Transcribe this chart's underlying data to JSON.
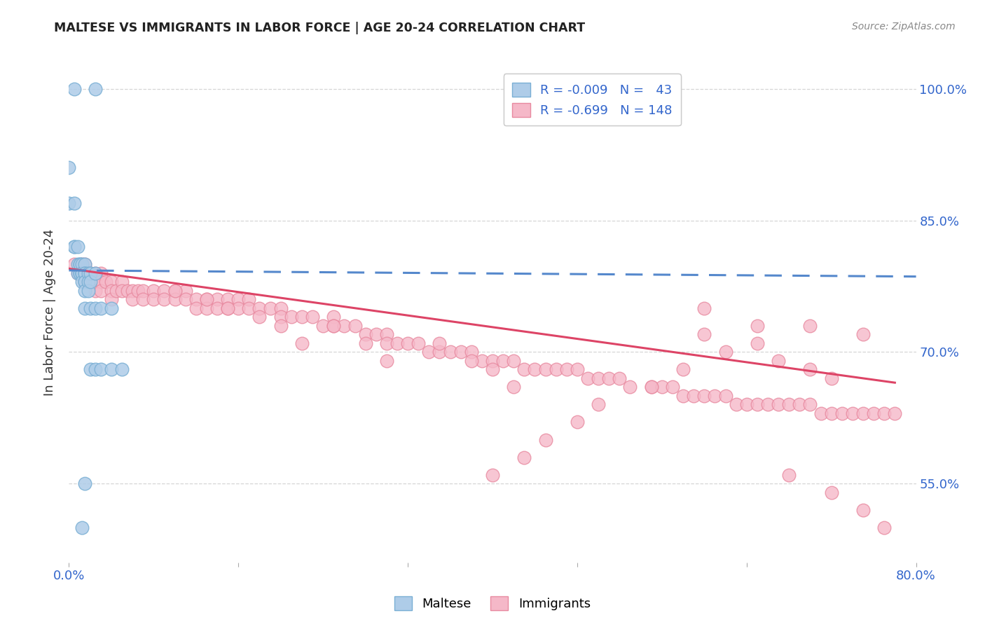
{
  "title": "MALTESE VS IMMIGRANTS IN LABOR FORCE | AGE 20-24 CORRELATION CHART",
  "source": "Source: ZipAtlas.com",
  "ylabel": "In Labor Force | Age 20-24",
  "xlim": [
    0.0,
    0.8
  ],
  "ylim": [
    0.46,
    1.03
  ],
  "ytick_values": [
    0.55,
    0.7,
    0.85,
    1.0
  ],
  "ytick_labels": [
    "55.0%",
    "70.0%",
    "85.0%",
    "100.0%"
  ],
  "xtick_values": [
    0.0,
    0.16,
    0.32,
    0.48,
    0.64,
    0.8
  ],
  "xtick_labels": [
    "0.0%",
    "",
    "",
    "",
    "",
    "80.0%"
  ],
  "maltese_color": "#aecce8",
  "immigrants_color": "#f5b8c8",
  "maltese_edge": "#7aafd4",
  "immigrants_edge": "#e88aa0",
  "trendline_maltese_color": "#5588cc",
  "trendline_immigrants_color": "#dd4466",
  "grid_color": "#cccccc",
  "background_color": "#ffffff",
  "maltese_x": [
    0.005,
    0.025,
    0.0,
    0.0,
    0.005,
    0.005,
    0.005,
    0.008,
    0.008,
    0.008,
    0.01,
    0.01,
    0.01,
    0.01,
    0.012,
    0.012,
    0.012,
    0.012,
    0.012,
    0.015,
    0.015,
    0.015,
    0.015,
    0.015,
    0.015,
    0.015,
    0.018,
    0.018,
    0.018,
    0.02,
    0.02,
    0.02,
    0.02,
    0.025,
    0.025,
    0.025,
    0.03,
    0.03,
    0.04,
    0.04,
    0.05,
    0.015,
    0.012
  ],
  "maltese_y": [
    1.0,
    1.0,
    0.91,
    0.87,
    0.87,
    0.82,
    0.82,
    0.82,
    0.8,
    0.79,
    0.8,
    0.8,
    0.79,
    0.79,
    0.8,
    0.79,
    0.79,
    0.79,
    0.78,
    0.8,
    0.79,
    0.79,
    0.78,
    0.78,
    0.77,
    0.75,
    0.79,
    0.78,
    0.77,
    0.79,
    0.78,
    0.75,
    0.68,
    0.79,
    0.75,
    0.68,
    0.75,
    0.68,
    0.68,
    0.75,
    0.68,
    0.55,
    0.5
  ],
  "immigrants_x": [
    0.005,
    0.008,
    0.01,
    0.012,
    0.012,
    0.015,
    0.015,
    0.015,
    0.018,
    0.018,
    0.02,
    0.02,
    0.02,
    0.025,
    0.025,
    0.025,
    0.03,
    0.03,
    0.03,
    0.035,
    0.04,
    0.04,
    0.04,
    0.045,
    0.05,
    0.05,
    0.055,
    0.06,
    0.06,
    0.065,
    0.07,
    0.07,
    0.08,
    0.08,
    0.09,
    0.09,
    0.1,
    0.1,
    0.11,
    0.11,
    0.12,
    0.12,
    0.13,
    0.13,
    0.14,
    0.14,
    0.15,
    0.15,
    0.16,
    0.16,
    0.17,
    0.17,
    0.18,
    0.19,
    0.2,
    0.2,
    0.21,
    0.22,
    0.23,
    0.24,
    0.25,
    0.25,
    0.26,
    0.27,
    0.28,
    0.29,
    0.3,
    0.3,
    0.31,
    0.32,
    0.33,
    0.34,
    0.35,
    0.36,
    0.37,
    0.38,
    0.39,
    0.4,
    0.41,
    0.42,
    0.43,
    0.44,
    0.45,
    0.46,
    0.47,
    0.48,
    0.49,
    0.5,
    0.51,
    0.52,
    0.53,
    0.55,
    0.56,
    0.57,
    0.58,
    0.59,
    0.6,
    0.6,
    0.61,
    0.62,
    0.63,
    0.64,
    0.65,
    0.65,
    0.66,
    0.67,
    0.68,
    0.69,
    0.7,
    0.7,
    0.71,
    0.72,
    0.73,
    0.74,
    0.75,
    0.75,
    0.76,
    0.77,
    0.78,
    0.6,
    0.62,
    0.58,
    0.55,
    0.5,
    0.48,
    0.45,
    0.43,
    0.4,
    0.65,
    0.67,
    0.7,
    0.72,
    0.35,
    0.38,
    0.4,
    0.42,
    0.25,
    0.28,
    0.3,
    0.2,
    0.22,
    0.18,
    0.15,
    0.13,
    0.1,
    0.75,
    0.77,
    0.72,
    0.68
  ],
  "immigrants_y": [
    0.8,
    0.79,
    0.79,
    0.8,
    0.79,
    0.8,
    0.79,
    0.78,
    0.79,
    0.78,
    0.79,
    0.79,
    0.78,
    0.79,
    0.78,
    0.77,
    0.79,
    0.78,
    0.77,
    0.78,
    0.78,
    0.77,
    0.76,
    0.77,
    0.78,
    0.77,
    0.77,
    0.77,
    0.76,
    0.77,
    0.77,
    0.76,
    0.77,
    0.76,
    0.77,
    0.76,
    0.77,
    0.76,
    0.77,
    0.76,
    0.76,
    0.75,
    0.76,
    0.75,
    0.76,
    0.75,
    0.76,
    0.75,
    0.76,
    0.75,
    0.76,
    0.75,
    0.75,
    0.75,
    0.75,
    0.74,
    0.74,
    0.74,
    0.74,
    0.73,
    0.74,
    0.73,
    0.73,
    0.73,
    0.72,
    0.72,
    0.72,
    0.71,
    0.71,
    0.71,
    0.71,
    0.7,
    0.7,
    0.7,
    0.7,
    0.7,
    0.69,
    0.69,
    0.69,
    0.69,
    0.68,
    0.68,
    0.68,
    0.68,
    0.68,
    0.68,
    0.67,
    0.67,
    0.67,
    0.67,
    0.66,
    0.66,
    0.66,
    0.66,
    0.65,
    0.65,
    0.75,
    0.65,
    0.65,
    0.65,
    0.64,
    0.64,
    0.64,
    0.73,
    0.64,
    0.64,
    0.64,
    0.64,
    0.73,
    0.64,
    0.63,
    0.63,
    0.63,
    0.63,
    0.72,
    0.63,
    0.63,
    0.63,
    0.63,
    0.72,
    0.7,
    0.68,
    0.66,
    0.64,
    0.62,
    0.6,
    0.58,
    0.56,
    0.71,
    0.69,
    0.68,
    0.67,
    0.71,
    0.69,
    0.68,
    0.66,
    0.73,
    0.71,
    0.69,
    0.73,
    0.71,
    0.74,
    0.75,
    0.76,
    0.77,
    0.52,
    0.5,
    0.54,
    0.56
  ]
}
